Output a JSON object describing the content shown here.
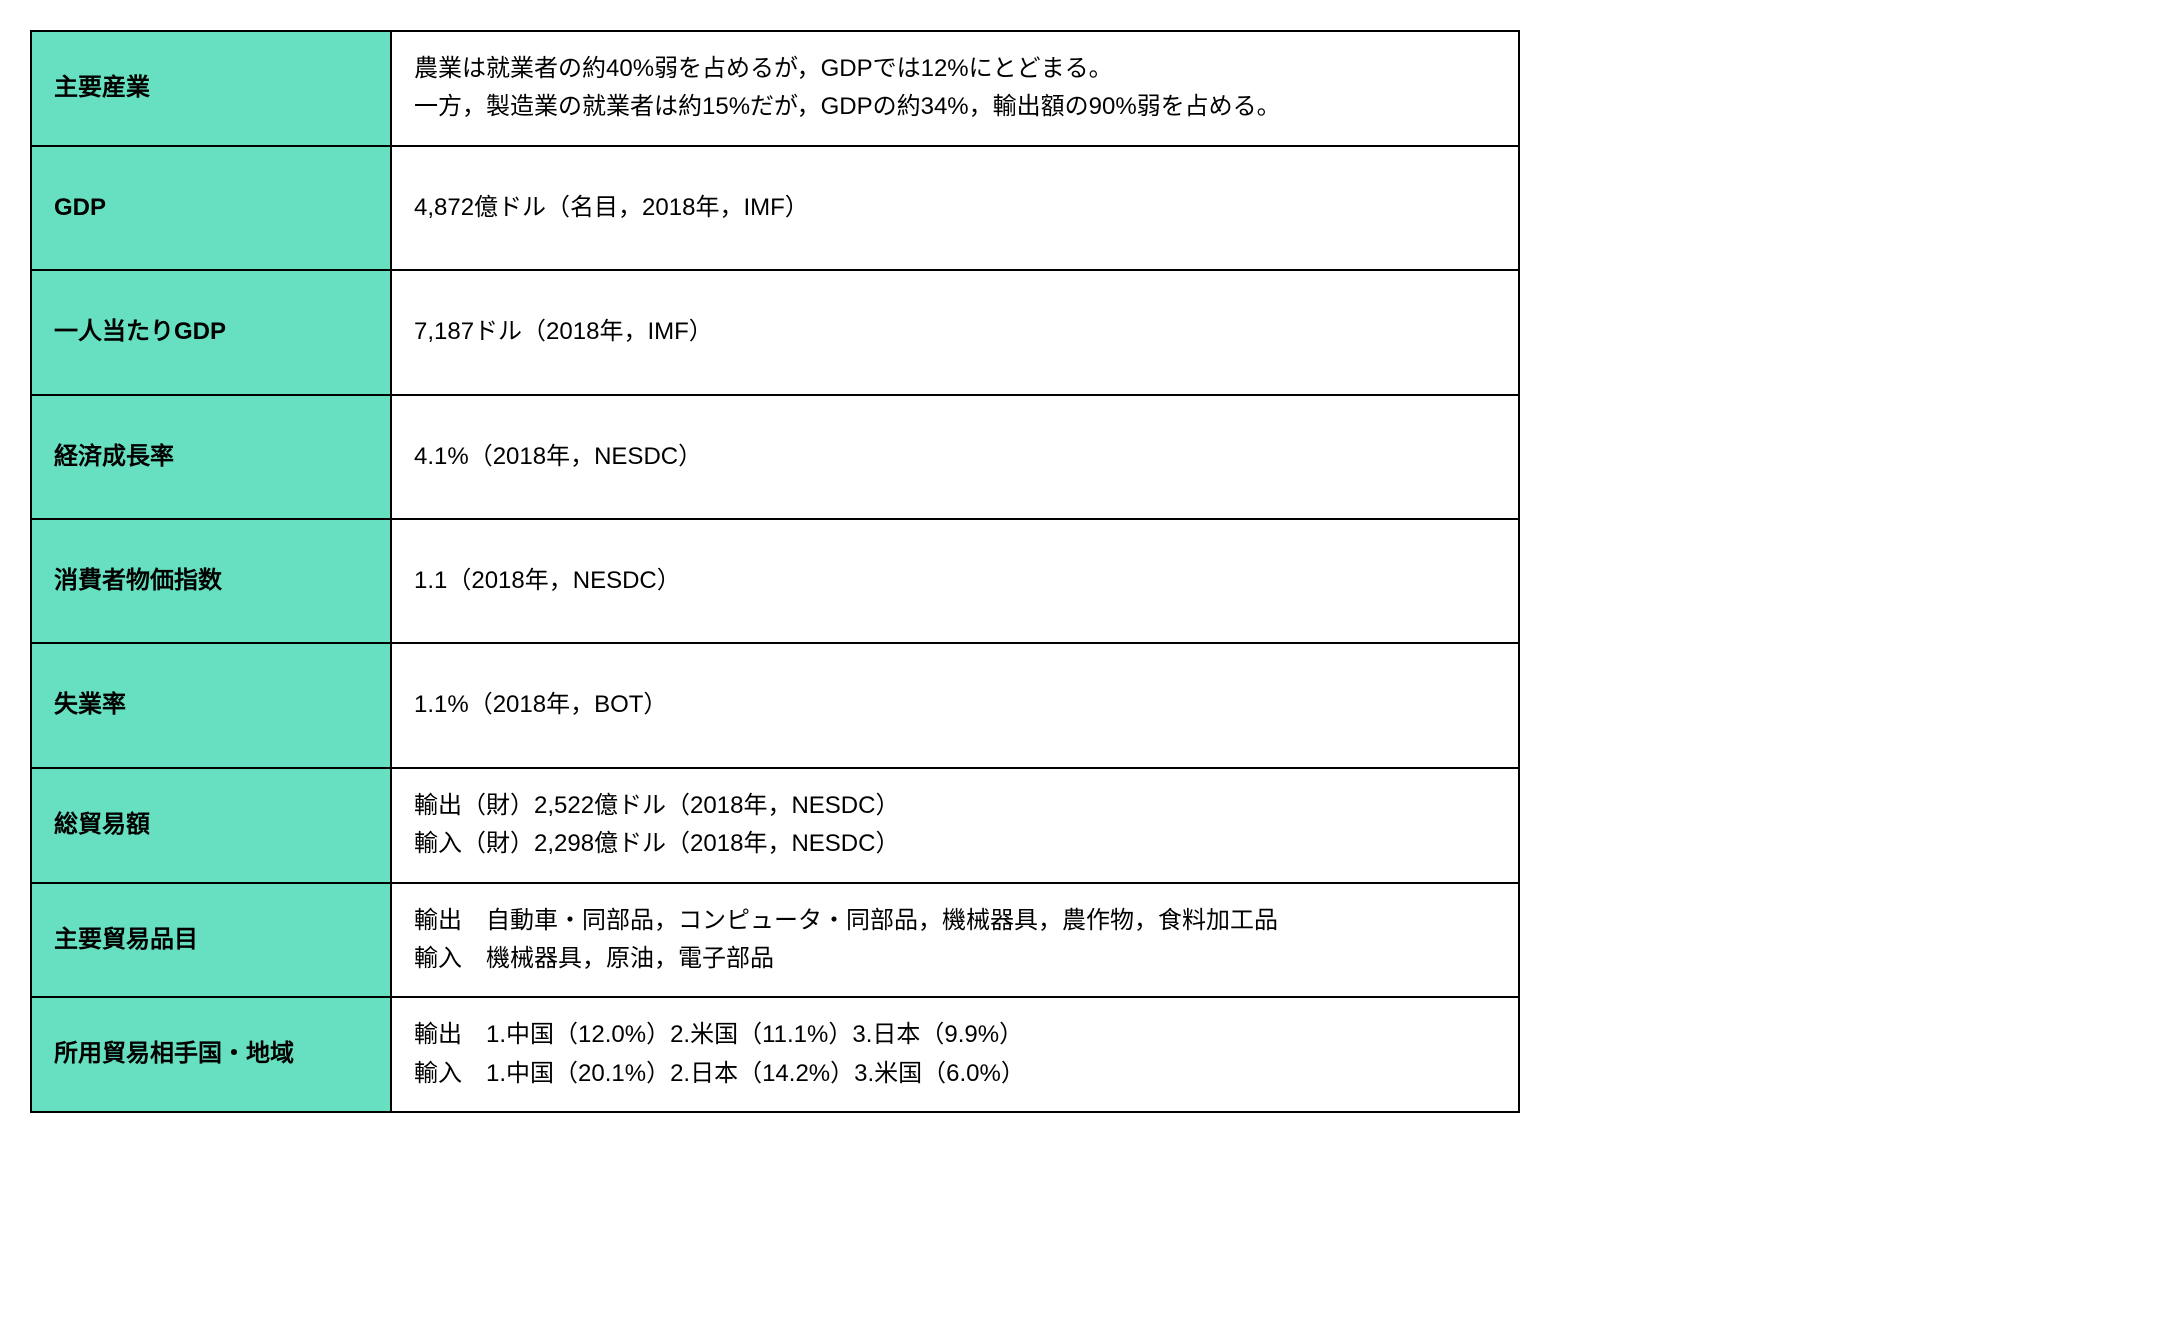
{
  "table": {
    "label_bg_color": "#66e0c0",
    "value_bg_color": "#ffffff",
    "border_color": "#000000",
    "border_width": 2,
    "label_font_weight": "bold",
    "font_size": 24,
    "rows": [
      {
        "label": "主要産業",
        "value_lines": [
          "農業は就業者の約40%弱を占めるが，GDPでは12%にとどまる。",
          "一方，製造業の就業者は約15%だが，GDPの約34%，輸出額の90%弱を占める。"
        ]
      },
      {
        "label": "GDP",
        "value_lines": [
          "4,872億ドル（名目，2018年，IMF）"
        ],
        "tall": true
      },
      {
        "label": "一人当たりGDP",
        "value_lines": [
          "7,187ドル（2018年，IMF）"
        ],
        "tall": true
      },
      {
        "label": "経済成長率",
        "value_lines": [
          "4.1%（2018年，NESDC）"
        ],
        "tall": true
      },
      {
        "label": "消費者物価指数",
        "value_lines": [
          "1.1（2018年，NESDC）"
        ],
        "tall": true
      },
      {
        "label": "失業率",
        "value_lines": [
          "1.1%（2018年，BOT）"
        ],
        "tall": true
      },
      {
        "label": "総貿易額",
        "value_lines": [
          "輸出（財）2,522億ドル（2018年，NESDC）",
          "輸入（財）2,298億ドル（2018年，NESDC）"
        ]
      },
      {
        "label": "主要貿易品目",
        "value_lines": [
          "輸出　自動車・同部品，コンピュータ・同部品，機械器具，農作物，食料加工品",
          "輸入　機械器具，原油，電子部品"
        ]
      },
      {
        "label": "所用貿易相手国・地域",
        "value_lines": [
          "輸出　1.中国（12.0%）2.米国（11.1%）3.日本（9.9%）",
          "輸入　1.中国（20.1%）2.日本（14.2%）3.米国（6.0%）"
        ]
      }
    ]
  }
}
